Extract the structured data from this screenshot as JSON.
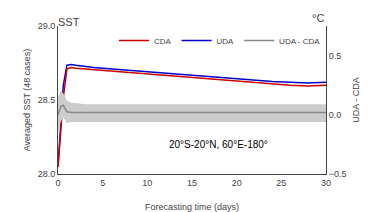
{
  "chart_data": {
    "type": "line",
    "title": "SST",
    "annotations": [
      "°C",
      "20°S-20°N, 60°E-180°"
    ],
    "xlabel": "Forecasting time (days)",
    "ylabel": "Averaged SST (48 cases)",
    "y2label": "UDA - CDA",
    "x": [
      0,
      0.3,
      0.6,
      1.0,
      1.5,
      2,
      3,
      4,
      5,
      6,
      7,
      8,
      9,
      10,
      12,
      14,
      16,
      18,
      20,
      22,
      24,
      26,
      28,
      30
    ],
    "xlim": [
      0,
      30
    ],
    "xticks": [
      0,
      5,
      10,
      15,
      20,
      25,
      30
    ],
    "ylim": [
      28.0,
      29.0
    ],
    "yticks": [
      {
        "value": 28.0,
        "label": "28.0"
      },
      28.5,
      {
        "value": 29.0,
        "label": "29.0"
      }
    ],
    "y2lim": [
      -0.5,
      0.75
    ],
    "y2ticks": [
      {
        "value": -0.5,
        "label": "−0.5"
      },
      {
        "value": 0.0,
        "label": "0.0"
      },
      0.5
    ],
    "grid": false,
    "legend": "upper right",
    "series": [
      {
        "type": "band",
        "axis": "y2",
        "color": "#cccccc",
        "lower": [
          -0.15,
          -0.06,
          -0.02,
          -0.07,
          -0.06,
          -0.06,
          -0.06,
          -0.06,
          -0.06,
          -0.06,
          -0.06,
          -0.06,
          -0.06,
          -0.06,
          -0.06,
          -0.06,
          -0.06,
          -0.06,
          -0.06,
          -0.06,
          -0.06,
          -0.06,
          -0.06,
          -0.06
        ],
        "upper": [
          0.15,
          0.2,
          0.18,
          0.12,
          0.1,
          0.1,
          0.09,
          0.09,
          0.09,
          0.09,
          0.09,
          0.09,
          0.09,
          0.09,
          0.09,
          0.09,
          0.09,
          0.09,
          0.09,
          0.09,
          0.09,
          0.09,
          0.09,
          0.09
        ]
      },
      {
        "name": "UDA - CDA",
        "axis": "y2",
        "color": "#888888",
        "values": [
          0.0,
          0.07,
          0.08,
          0.025,
          0.02,
          0.02,
          0.015,
          0.015,
          0.015,
          0.015,
          0.015,
          0.015,
          0.015,
          0.015,
          0.015,
          0.015,
          0.015,
          0.015,
          0.015,
          0.02,
          0.02,
          0.02,
          0.02,
          0.02
        ]
      },
      {
        "name": "UDA",
        "color": "#0000cc",
        "values": [
          28.05,
          28.35,
          28.6,
          28.735,
          28.74,
          28.735,
          28.725,
          28.72,
          28.715,
          28.71,
          28.705,
          28.7,
          28.695,
          28.69,
          28.68,
          28.67,
          28.66,
          28.65,
          28.64,
          28.635,
          28.625,
          28.62,
          28.615,
          28.62
        ]
      },
      {
        "name": "CDA",
        "color": "#cc0000",
        "values": [
          28.05,
          28.28,
          28.52,
          28.71,
          28.72,
          28.715,
          28.71,
          28.705,
          28.7,
          28.695,
          28.69,
          28.685,
          28.68,
          28.675,
          28.665,
          28.655,
          28.645,
          28.635,
          28.625,
          28.615,
          28.605,
          28.6,
          28.595,
          28.6
        ]
      }
    ]
  }
}
